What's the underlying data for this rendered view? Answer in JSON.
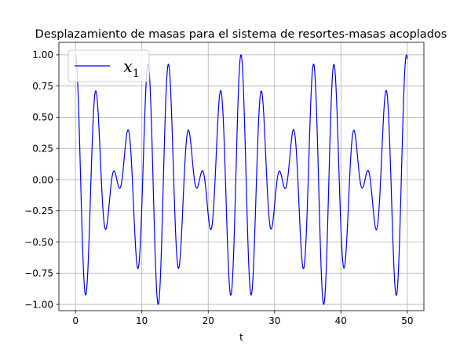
{
  "chart_data": {
    "type": "line",
    "title": "Desplazamiento de masas para el sistema de resortes-masas acoplados",
    "xlabel": "t",
    "ylabel": "",
    "xlim": [
      -2.5,
      52.5
    ],
    "ylim": [
      -1.05,
      1.1
    ],
    "xticks": [
      0,
      10,
      20,
      30,
      40,
      50
    ],
    "xtick_labels": [
      "0",
      "10",
      "20",
      "30",
      "40",
      "50"
    ],
    "yticks": [
      -1.0,
      -0.75,
      -0.5,
      -0.25,
      0.0,
      0.25,
      0.5,
      0.75,
      1.0
    ],
    "ytick_labels": [
      "−1.00",
      "−0.75",
      "−0.50",
      "−0.25",
      "0.00",
      "0.25",
      "0.50",
      "0.75",
      "1.00"
    ],
    "grid": true,
    "legend_position": "top-left",
    "series": [
      {
        "name_main": "x",
        "name_sub": "1",
        "color": "#0000ff",
        "model": "0.5*cos(1.7637*t) + 0.5*cos(2.2678*t)",
        "t_start": 0,
        "t_end": 50,
        "samples": 2501
      }
    ]
  }
}
